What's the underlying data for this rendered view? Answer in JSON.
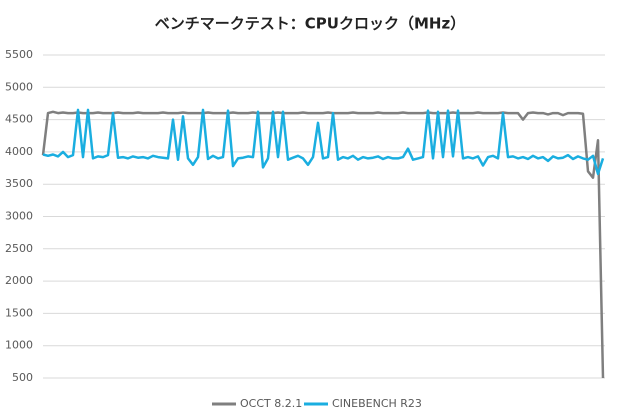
{
  "chart_data": {
    "type": "line",
    "title": "ベンチマークテスト：CPUクロック（MHz）",
    "ylim": [
      500,
      5500
    ],
    "yticks": [
      500,
      1000,
      1500,
      2000,
      2500,
      3000,
      3500,
      4000,
      4500,
      5000,
      5500
    ],
    "grid": true,
    "series": [
      {
        "name": "OCCT 8.2.1",
        "color": "#7f7f7f",
        "values": [
          3950,
          4600,
          4620,
          4600,
          4610,
          4600,
          4600,
          4610,
          4600,
          4600,
          4600,
          4610,
          4600,
          4600,
          4600,
          4610,
          4600,
          4600,
          4600,
          4610,
          4600,
          4600,
          4600,
          4600,
          4610,
          4600,
          4600,
          4600,
          4610,
          4600,
          4600,
          4600,
          4600,
          4610,
          4600,
          4600,
          4600,
          4600,
          4610,
          4600,
          4600,
          4600,
          4610,
          4600,
          4600,
          4600,
          4600,
          4610,
          4600,
          4600,
          4600,
          4600,
          4610,
          4600,
          4600,
          4600,
          4600,
          4610,
          4600,
          4600,
          4600,
          4600,
          4610,
          4600,
          4600,
          4600,
          4600,
          4610,
          4600,
          4600,
          4600,
          4600,
          4610,
          4600,
          4600,
          4600,
          4600,
          4610,
          4600,
          4600,
          4600,
          4600,
          4610,
          4600,
          4600,
          4600,
          4600,
          4610,
          4600,
          4600,
          4600,
          4600,
          4610,
          4600,
          4600,
          4600,
          4500,
          4600,
          4610,
          4600,
          4600,
          4580,
          4600,
          4600,
          4570,
          4600,
          4600,
          4600,
          4590,
          3700,
          3600,
          4180,
          500
        ]
      },
      {
        "name": "CINEBENCH R23",
        "color": "#1aaee0",
        "values": [
          3960,
          3940,
          3960,
          3930,
          4000,
          3920,
          3950,
          4650,
          3920,
          4650,
          3900,
          3930,
          3920,
          3950,
          4600,
          3910,
          3920,
          3900,
          3930,
          3910,
          3920,
          3900,
          3940,
          3920,
          3910,
          3900,
          4500,
          3880,
          4550,
          3900,
          3800,
          3920,
          4650,
          3890,
          3940,
          3900,
          3920,
          4640,
          3780,
          3900,
          3910,
          3930,
          3920,
          4620,
          3760,
          3900,
          4620,
          3920,
          4620,
          3880,
          3910,
          3940,
          3900,
          3800,
          3920,
          4450,
          3900,
          3920,
          4600,
          3880,
          3920,
          3900,
          3940,
          3880,
          3920,
          3900,
          3910,
          3930,
          3890,
          3920,
          3900,
          3900,
          3920,
          4050,
          3880,
          3900,
          3920,
          4640,
          3900,
          4620,
          3920,
          4640,
          3930,
          4640,
          3900,
          3920,
          3900,
          3930,
          3790,
          3920,
          3940,
          3900,
          4600,
          3920,
          3930,
          3900,
          3920,
          3890,
          3940,
          3900,
          3920,
          3860,
          3930,
          3900,
          3910,
          3950,
          3890,
          3930,
          3900,
          3880,
          3940,
          3660,
          3900
        ]
      }
    ]
  }
}
